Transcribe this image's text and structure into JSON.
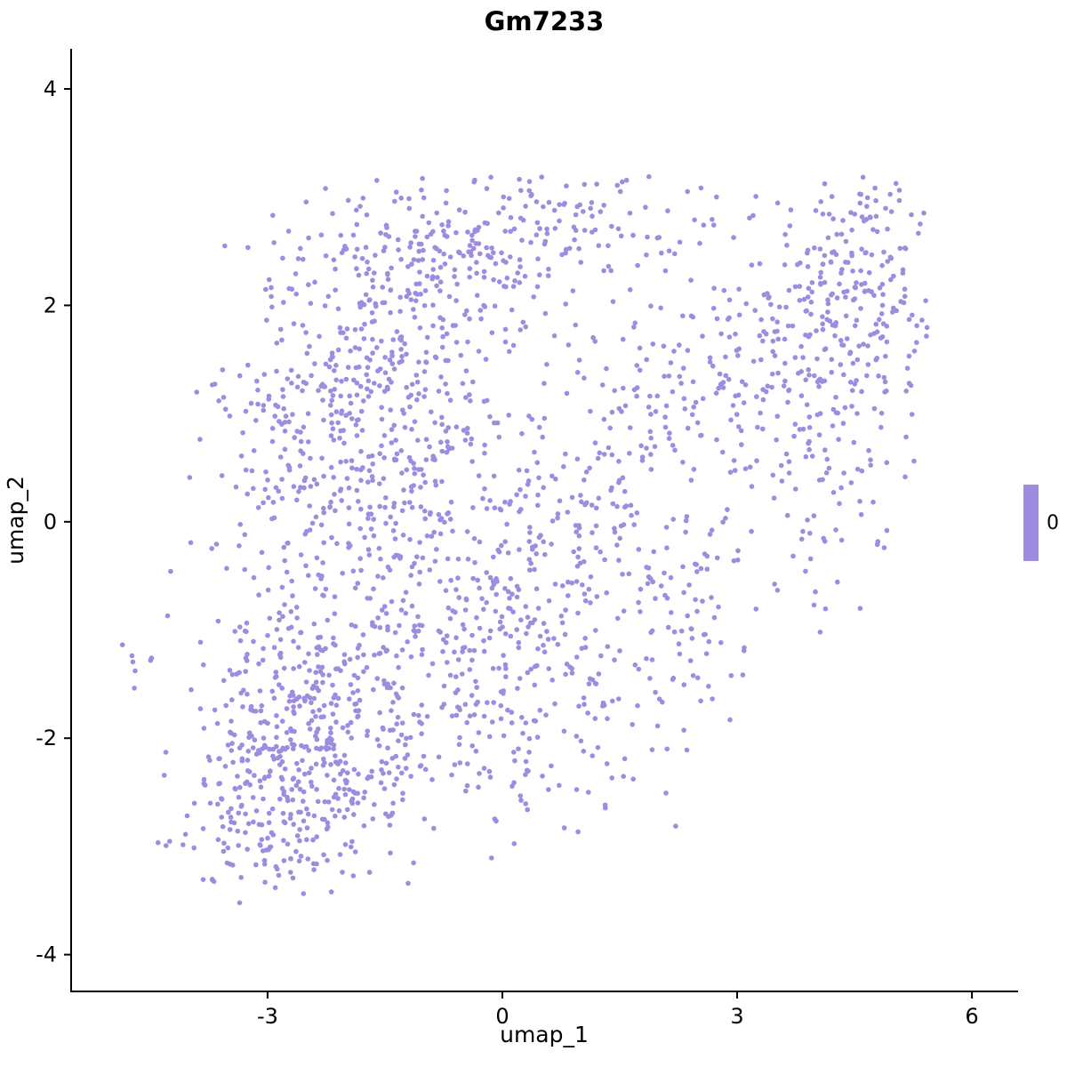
{
  "chart_data": {
    "type": "scatter",
    "title": "Gm7233",
    "xlabel": "umap_1",
    "ylabel": "umap_2",
    "xlim": [
      -5.51,
      6.59
    ],
    "ylim": [
      -4.34,
      4.37
    ],
    "xticks": [
      -3,
      0,
      3,
      6
    ],
    "yticks": [
      4,
      2,
      0,
      -2,
      -4
    ],
    "grid": false,
    "legend_position": "right",
    "point_color": "#9d8ce0",
    "point_radius": 2.8,
    "axis_color": "#000000",
    "background": "#ffffff",
    "legend": {
      "label": "0",
      "color": "#9d8ce0"
    },
    "seed": 42,
    "clip": {
      "xmin": -4.95,
      "xmax": 5.45,
      "ymin": -3.55,
      "ymax": 3.2
    },
    "clusters": [
      {
        "cx": -2.7,
        "cy": -2.3,
        "sx": 0.75,
        "sy": 0.6,
        "n": 430
      },
      {
        "cx": -2.0,
        "cy": -1.45,
        "sx": 0.9,
        "sy": 0.5,
        "n": 150
      },
      {
        "cx": -2.2,
        "cy": 0.6,
        "sx": 0.75,
        "sy": 0.9,
        "n": 330
      },
      {
        "cx": -1.2,
        "cy": 1.6,
        "sx": 0.8,
        "sy": 0.7,
        "n": 220
      },
      {
        "cx": -0.5,
        "cy": 2.5,
        "sx": 1.0,
        "sy": 0.4,
        "n": 170
      },
      {
        "cx": -0.4,
        "cy": -0.4,
        "sx": 0.8,
        "sy": 0.8,
        "n": 260
      },
      {
        "cx": 0.4,
        "cy": -1.7,
        "sx": 0.8,
        "sy": 0.6,
        "n": 140
      },
      {
        "cx": 4.6,
        "cy": 2.2,
        "sx": 0.55,
        "sy": 0.55,
        "n": 200
      },
      {
        "cx": 4.0,
        "cy": 0.8,
        "sx": 0.6,
        "sy": 0.8,
        "n": 130
      },
      {
        "cx": 2.7,
        "cy": 1.4,
        "sx": 0.8,
        "sy": 0.7,
        "n": 150
      },
      {
        "cx": 1.4,
        "cy": 0.2,
        "sx": 0.8,
        "sy": 0.8,
        "n": 150
      },
      {
        "cx": 2.3,
        "cy": -0.9,
        "sx": 0.5,
        "sy": 0.5,
        "n": 60
      },
      {
        "cx": -4.65,
        "cy": -1.25,
        "sx": 0.1,
        "sy": 0.12,
        "n": 7
      },
      {
        "cx": 0.8,
        "cy": 2.85,
        "sx": 0.9,
        "sy": 0.25,
        "n": 60
      }
    ]
  }
}
